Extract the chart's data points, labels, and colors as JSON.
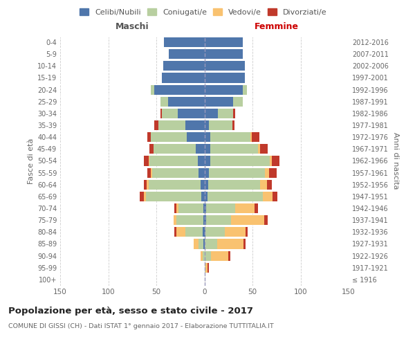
{
  "age_groups": [
    "100+",
    "95-99",
    "90-94",
    "85-89",
    "80-84",
    "75-79",
    "70-74",
    "65-69",
    "60-64",
    "55-59",
    "50-54",
    "45-49",
    "40-44",
    "35-39",
    "30-34",
    "25-29",
    "20-24",
    "15-19",
    "10-14",
    "5-9",
    "0-4"
  ],
  "birth_years": [
    "≤ 1916",
    "1917-1921",
    "1922-1926",
    "1927-1931",
    "1932-1936",
    "1937-1941",
    "1942-1946",
    "1947-1951",
    "1952-1956",
    "1957-1961",
    "1962-1966",
    "1967-1971",
    "1972-1976",
    "1977-1981",
    "1982-1986",
    "1987-1991",
    "1992-1996",
    "1997-2001",
    "2002-2006",
    "2007-2011",
    "2012-2016"
  ],
  "maschi_celibi": [
    0,
    0,
    0,
    1,
    2,
    1,
    1,
    3,
    4,
    6,
    7,
    9,
    18,
    20,
    28,
    38,
    52,
    44,
    43,
    37,
    42
  ],
  "maschi_coniugati": [
    0,
    0,
    2,
    5,
    18,
    28,
    26,
    58,
    54,
    48,
    50,
    44,
    38,
    28,
    16,
    8,
    4,
    0,
    0,
    0,
    0
  ],
  "maschi_vedovi": [
    0,
    0,
    2,
    5,
    9,
    3,
    2,
    2,
    2,
    2,
    1,
    0,
    0,
    0,
    0,
    0,
    0,
    0,
    0,
    0,
    0
  ],
  "maschi_divorziati": [
    0,
    0,
    0,
    0,
    2,
    0,
    2,
    4,
    3,
    3,
    5,
    4,
    3,
    4,
    2,
    0,
    0,
    0,
    0,
    0,
    0
  ],
  "femmine_nubili": [
    0,
    0,
    0,
    0,
    1,
    2,
    2,
    3,
    4,
    5,
    6,
    6,
    6,
    5,
    14,
    30,
    40,
    42,
    42,
    40,
    40
  ],
  "femmine_coniugate": [
    0,
    1,
    7,
    13,
    20,
    26,
    30,
    58,
    54,
    58,
    62,
    50,
    42,
    24,
    16,
    10,
    4,
    0,
    0,
    0,
    0
  ],
  "femmine_vedove": [
    0,
    2,
    18,
    28,
    22,
    34,
    20,
    10,
    7,
    4,
    2,
    2,
    1,
    0,
    0,
    0,
    0,
    0,
    0,
    0,
    0
  ],
  "femmine_divorziate": [
    0,
    2,
    2,
    2,
    2,
    4,
    4,
    5,
    5,
    8,
    8,
    8,
    8,
    2,
    2,
    0,
    0,
    0,
    0,
    0,
    0
  ],
  "color_celibi": "#4f76ab",
  "color_coniugati": "#b8cfa0",
  "color_vedovi": "#f9c270",
  "color_divorziati": "#c0392b",
  "xlim": 150,
  "title": "Popolazione per età, sesso e stato civile - 2017",
  "subtitle": "COMUNE DI GISSI (CH) - Dati ISTAT 1° gennaio 2017 - Elaborazione TUTTITALIA.IT",
  "legend_labels": [
    "Celibi/Nubili",
    "Coniugati/e",
    "Vedovi/e",
    "Divorziati/e"
  ],
  "maschi_label": "Maschi",
  "femmine_label": "Femmine",
  "ylabel_left": "Fasce di età",
  "ylabel_right": "Anni di nascita"
}
